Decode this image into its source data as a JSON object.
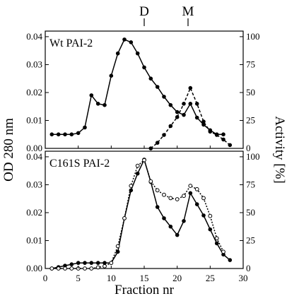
{
  "chart_data": {
    "type": "line",
    "marker_labels": [
      {
        "text": "D",
        "x": 15
      },
      {
        "text": "M",
        "x": 22
      }
    ],
    "xlabel": "Fraction nr",
    "xlim": [
      0,
      30
    ],
    "x_ticks": [
      0,
      5,
      10,
      15,
      20,
      25,
      30
    ],
    "ylabel_left": "OD 280 nm",
    "ylabel_right": "Activity [%]",
    "panels": [
      {
        "label": "Wt PAI-2",
        "ylim_left": [
          0,
          0.042
        ],
        "ylim_right": [
          0,
          105
        ],
        "left_ticks": [
          "0.00",
          "0.01",
          "0.02",
          "0.03",
          "0.04"
        ],
        "right_ticks": [
          "0",
          "25",
          "50",
          "75",
          "100"
        ],
        "series": [
          {
            "style": "solid",
            "marker": "filled",
            "axis": "left",
            "x": [
              1,
              2,
              3,
              4,
              5,
              6,
              7,
              8,
              9,
              10,
              11,
              12,
              13,
              14,
              15,
              16,
              17,
              18,
              19,
              20,
              21,
              22,
              23,
              24,
              25,
              26,
              27
            ],
            "y": [
              0.005,
              0.005,
              0.005,
              0.005,
              0.0055,
              0.0075,
              0.019,
              0.016,
              0.0155,
              0.026,
              0.034,
              0.039,
              0.038,
              0.034,
              0.029,
              0.025,
              0.022,
              0.0185,
              0.0155,
              0.013,
              0.012,
              0.016,
              0.011,
              0.0085,
              0.0065,
              0.005,
              0.005
            ]
          },
          {
            "style": "dashed",
            "marker": "filled",
            "axis": "right",
            "x": [
              16,
              17,
              18,
              19,
              20,
              21,
              22,
              23,
              24,
              25,
              26,
              27,
              28
            ],
            "y": [
              0,
              5,
              12,
              20,
              28,
              40,
              54,
              40,
              24,
              15,
              12,
              8,
              3
            ]
          }
        ]
      },
      {
        "label": "C161S  PAI-2",
        "ylim_left": [
          0,
          0.042
        ],
        "ylim_right": [
          0,
          105
        ],
        "left_ticks": [
          "0.00",
          "0.01",
          "0.02",
          "0.03",
          "0.04"
        ],
        "right_ticks": [
          "0",
          "25",
          "50",
          "75",
          "100"
        ],
        "series": [
          {
            "style": "solid",
            "marker": "filled",
            "axis": "left",
            "x": [
              1,
              2,
              3,
              4,
              5,
              6,
              7,
              8,
              9,
              10,
              11,
              12,
              13,
              14,
              15,
              16,
              17,
              18,
              19,
              20,
              21,
              22,
              23,
              24,
              25,
              26,
              27,
              28
            ],
            "y": [
              0.0,
              0.0005,
              0.001,
              0.0015,
              0.002,
              0.002,
              0.002,
              0.002,
              0.002,
              0.002,
              0.006,
              0.018,
              0.028,
              0.034,
              0.039,
              0.031,
              0.022,
              0.018,
              0.015,
              0.012,
              0.017,
              0.027,
              0.023,
              0.019,
              0.014,
              0.009,
              0.005,
              0.003
            ]
          },
          {
            "style": "dotted",
            "marker": "open",
            "axis": "right",
            "x": [
              1,
              2,
              3,
              4,
              5,
              6,
              7,
              8,
              9,
              10,
              11,
              12,
              13,
              14,
              15,
              16,
              17,
              18,
              19,
              20,
              21,
              22,
              23,
              24,
              25,
              26,
              27
            ],
            "y": [
              0,
              0,
              0,
              0,
              0,
              0,
              0,
              1,
              2,
              5,
              20,
              45,
              74,
              92,
              97,
              78,
              70,
              66,
              63,
              62,
              65,
              74,
              71,
              63,
              47,
              27,
              15
            ]
          }
        ]
      }
    ]
  }
}
